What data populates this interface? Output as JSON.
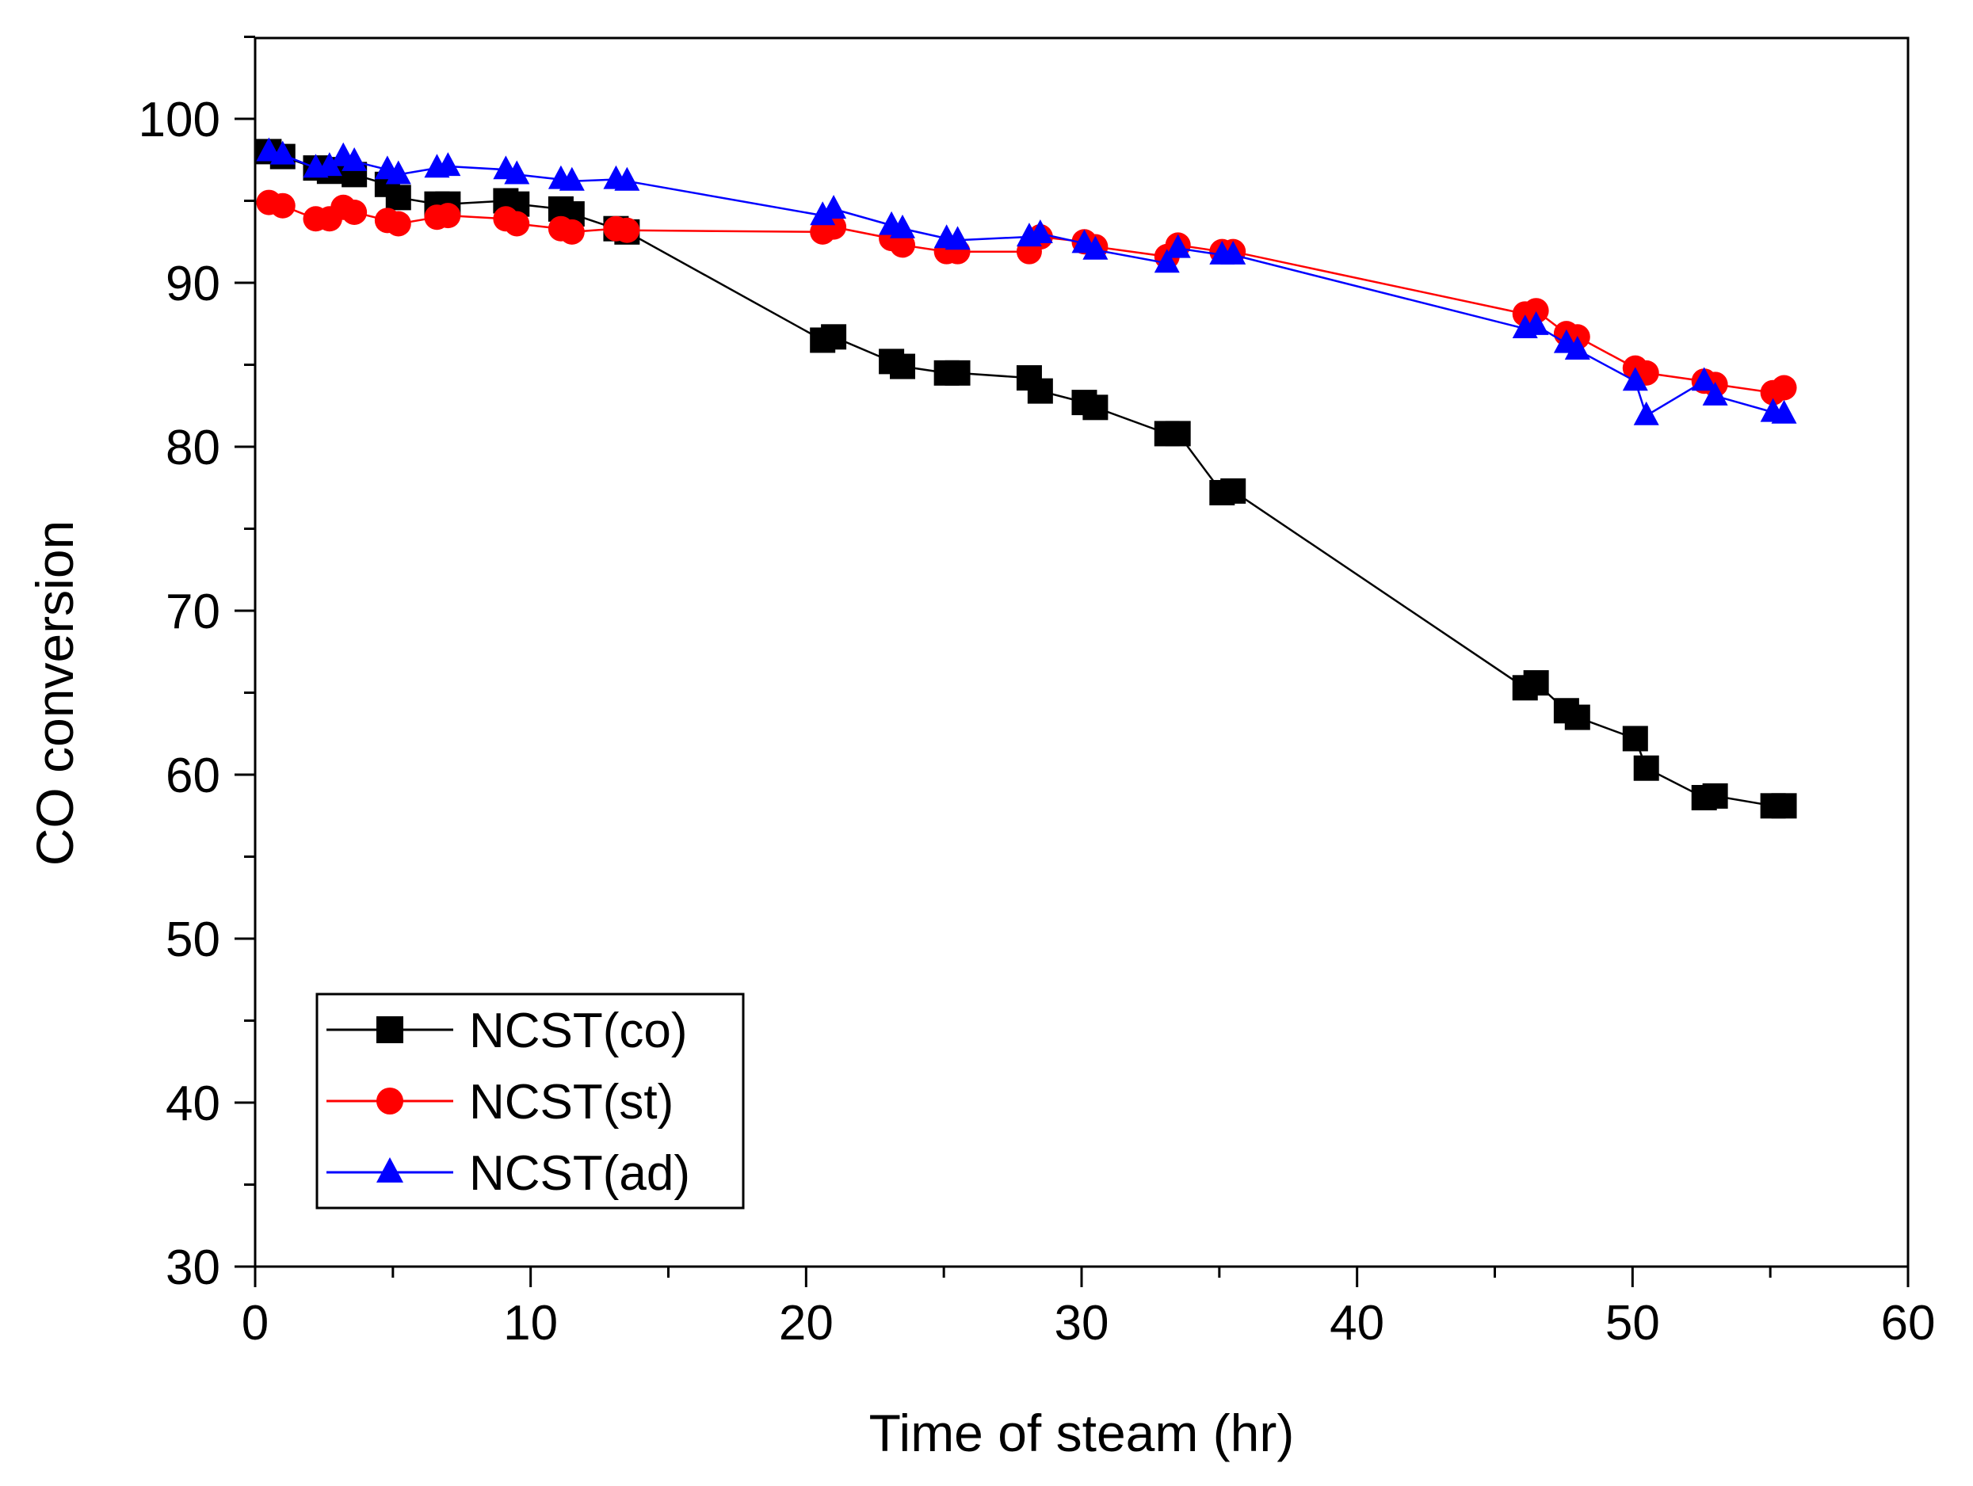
{
  "chart_data": {
    "type": "line",
    "title": "",
    "xlabel": "Time of steam (hr)",
    "ylabel": "CO conversion",
    "xlim": [
      0,
      60
    ],
    "ylim": [
      30,
      105
    ],
    "xticks": [
      0,
      10,
      20,
      30,
      40,
      50,
      60
    ],
    "yticks": [
      30,
      40,
      50,
      60,
      70,
      80,
      90,
      100
    ],
    "xtick_labels": [
      "0",
      "10",
      "20",
      "30",
      "40",
      "50",
      "60"
    ],
    "ytick_labels": [
      "30",
      "40",
      "50",
      "60",
      "70",
      "80",
      "90",
      "100"
    ],
    "grid": false,
    "legend_position": "bottom-left",
    "series": [
      {
        "name": "NCST(co)",
        "color": "#000000",
        "marker": "square",
        "x": [
          0.5,
          1.0,
          2.2,
          2.7,
          3.2,
          3.6,
          4.8,
          5.2,
          6.6,
          7.0,
          9.1,
          9.5,
          11.1,
          11.5,
          13.1,
          13.5,
          20.6,
          21.0,
          23.1,
          23.5,
          25.1,
          25.5,
          28.1,
          28.5,
          30.1,
          30.5,
          33.1,
          33.5,
          35.1,
          35.5,
          46.1,
          46.5,
          47.6,
          48.0,
          50.1,
          50.5,
          52.6,
          53.0,
          55.1,
          55.5
        ],
        "y": [
          98.0,
          97.7,
          97.0,
          96.8,
          96.9,
          96.6,
          96.0,
          95.2,
          94.8,
          94.8,
          95.0,
          94.8,
          94.5,
          94.2,
          93.3,
          93.1,
          86.5,
          86.7,
          85.2,
          84.9,
          84.5,
          84.5,
          84.2,
          83.4,
          82.7,
          82.4,
          80.8,
          80.8,
          77.2,
          77.3,
          65.3,
          65.6,
          63.9,
          63.5,
          62.2,
          60.4,
          58.6,
          58.7,
          58.1,
          58.1
        ]
      },
      {
        "name": "NCST(st)",
        "color": "#ff0000",
        "marker": "circle",
        "x": [
          0.5,
          1.0,
          2.2,
          2.7,
          3.2,
          3.6,
          4.8,
          5.2,
          6.6,
          7.0,
          9.1,
          9.5,
          11.1,
          11.5,
          13.1,
          13.5,
          20.6,
          21.0,
          23.1,
          23.5,
          25.1,
          25.5,
          28.1,
          28.5,
          30.1,
          30.5,
          33.1,
          33.5,
          35.1,
          35.5,
          46.1,
          46.5,
          47.6,
          48.0,
          50.1,
          50.5,
          52.6,
          53.0,
          55.1,
          55.5
        ],
        "y": [
          94.9,
          94.7,
          93.9,
          93.9,
          94.6,
          94.3,
          93.8,
          93.6,
          94.0,
          94.1,
          93.9,
          93.6,
          93.3,
          93.1,
          93.3,
          93.2,
          93.1,
          93.4,
          92.7,
          92.3,
          91.9,
          91.9,
          91.9,
          92.8,
          92.5,
          92.2,
          91.6,
          92.3,
          91.9,
          91.9,
          88.1,
          88.3,
          86.9,
          86.7,
          84.8,
          84.5,
          84.0,
          83.8,
          83.3,
          83.6
        ]
      },
      {
        "name": "NCST(ad)",
        "color": "#0000ff",
        "marker": "triangle",
        "x": [
          0.5,
          1.0,
          2.2,
          2.7,
          3.2,
          3.6,
          4.8,
          5.2,
          6.6,
          7.0,
          9.1,
          9.5,
          11.1,
          11.5,
          13.1,
          13.5,
          20.6,
          21.0,
          23.1,
          23.5,
          25.1,
          25.5,
          28.1,
          28.5,
          30.1,
          30.5,
          33.1,
          33.5,
          35.1,
          35.5,
          46.1,
          46.5,
          47.6,
          48.0,
          50.1,
          50.5,
          52.6,
          53.0,
          55.1,
          55.5
        ],
        "y": [
          98.0,
          97.8,
          97.0,
          97.1,
          97.7,
          97.4,
          96.9,
          96.6,
          97.0,
          97.1,
          96.9,
          96.6,
          96.3,
          96.2,
          96.3,
          96.2,
          94.1,
          94.5,
          93.5,
          93.3,
          92.7,
          92.6,
          92.8,
          93.0,
          92.4,
          92.0,
          91.2,
          92.1,
          91.7,
          91.7,
          87.2,
          87.4,
          86.3,
          85.9,
          84.0,
          81.9,
          84.0,
          83.1,
          82.1,
          82.0
        ]
      }
    ]
  }
}
